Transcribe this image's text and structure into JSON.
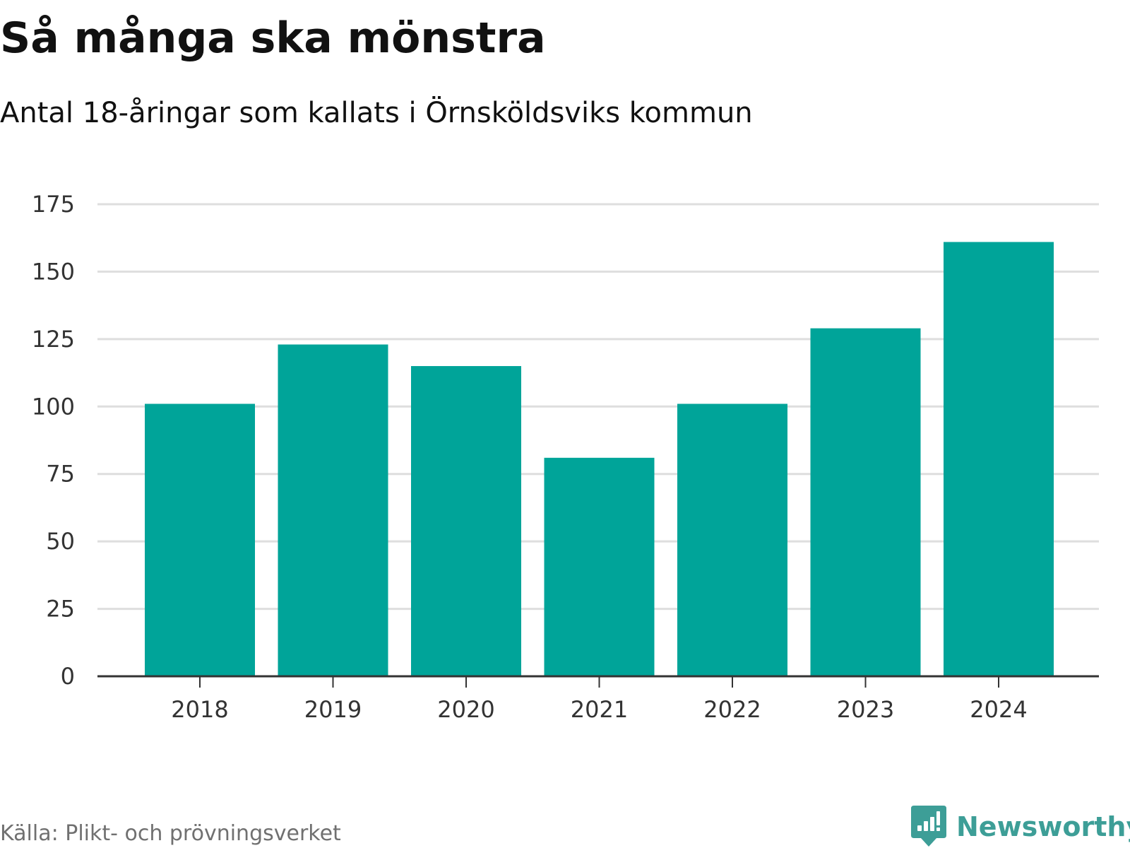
{
  "header": {
    "title": "Så många ska mönstra",
    "subtitle": "Antal 18-åringar som kallats i Örnsköldsviks kommun"
  },
  "footer": {
    "source": "Källa: Plikt- och prövningsverket",
    "brand": "Newsworthy"
  },
  "colors": {
    "bar": "#00A499",
    "grid": "#DEDEDE",
    "axis": "#333333",
    "brand": "#3D9E97"
  },
  "chart_data": {
    "type": "bar",
    "title": "Så många ska mönstra",
    "subtitle": "Antal 18-åringar som kallats i Örnsköldsviks kommun",
    "categories": [
      "2018",
      "2019",
      "2020",
      "2021",
      "2022",
      "2023",
      "2024"
    ],
    "values": [
      101,
      123,
      115,
      81,
      101,
      129,
      161
    ],
    "xlabel": "",
    "ylabel": "",
    "ylim": [
      0,
      175
    ],
    "yticks": [
      "0",
      "25",
      "50",
      "75",
      "100",
      "125",
      "150",
      "175"
    ],
    "grid": true
  }
}
